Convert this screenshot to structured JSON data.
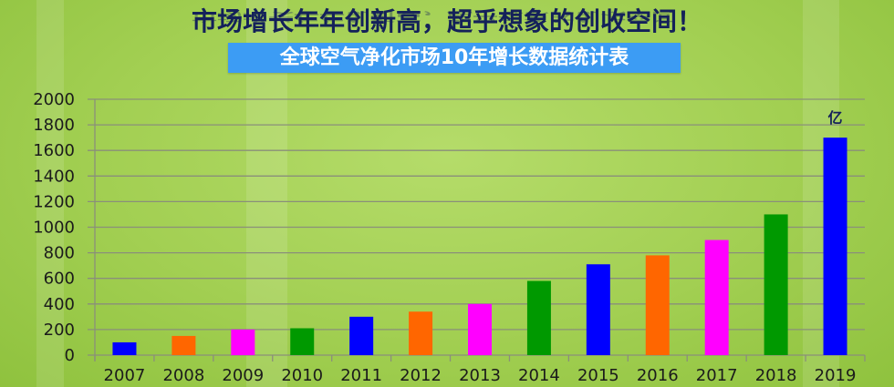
{
  "header": {
    "headline": "市场增长年年创新高，超乎想象的创收空间！",
    "banner": "全球空气净化市场10年增长数据统计表"
  },
  "chart_data": {
    "type": "bar",
    "title": "全球空气净化市场10年增长数据统计表",
    "unit_label": "亿",
    "categories": [
      "2007",
      "2008",
      "2009",
      "2010",
      "2011",
      "2012",
      "2013",
      "2014",
      "2015",
      "2016",
      "2017",
      "2018",
      "2019"
    ],
    "values": [
      100,
      150,
      200,
      210,
      300,
      340,
      400,
      580,
      710,
      780,
      900,
      1100,
      1700
    ],
    "colors": [
      "#0000ff",
      "#ff6600",
      "#ff00ff",
      "#009900",
      "#0000ff",
      "#ff6600",
      "#ff00ff",
      "#009900",
      "#0000ff",
      "#ff6600",
      "#ff00ff",
      "#009900",
      "#0000ff"
    ],
    "ylim": [
      0,
      2000
    ],
    "yticks": [
      0,
      200,
      400,
      600,
      800,
      1000,
      1200,
      1400,
      1600,
      1800,
      2000
    ],
    "grid": true,
    "legend": "none"
  }
}
